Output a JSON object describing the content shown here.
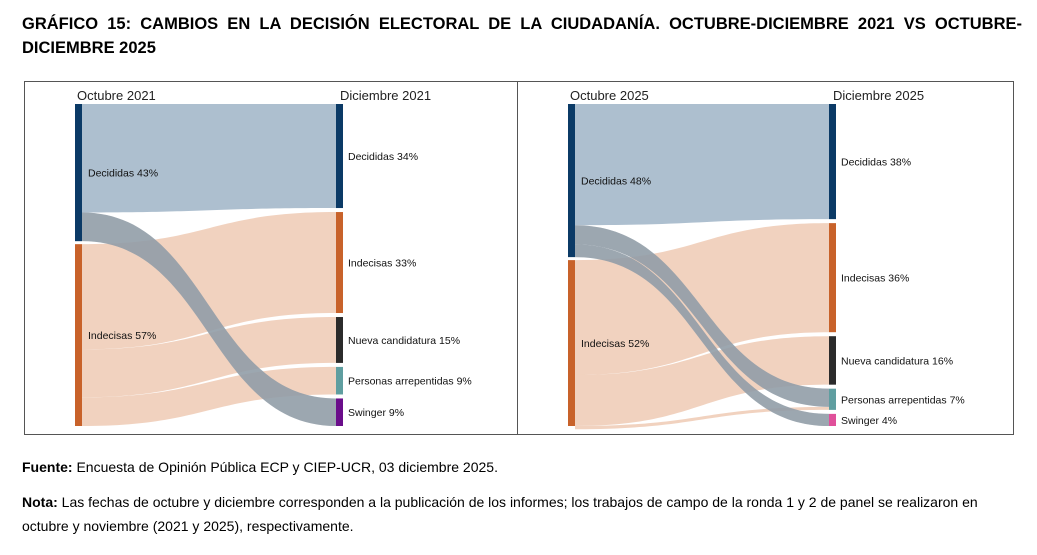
{
  "title": "GRÁFICO 15: CAMBIOS EN LA DECISIÓN ELECTORAL DE LA CIUDADANÍA. OCTUBRE-DICIEMBRE 2021 VS OCTUBRE-DICIEMBRE 2025",
  "footer": {
    "fuente_label": "Fuente:",
    "fuente_text": " Encuesta de Opinión Pública ECP y CIEP-UCR, 03 diciembre 2025.",
    "nota_label": "Nota:",
    "nota_text": " Las fechas de octubre y diciembre corresponden a la publicación de los informes; los trabajos de campo de la ronda 1 y 2 de panel se realizaron en octubre y noviembre (2021 y 2025), respectivamente."
  },
  "colors": {
    "decididas": "#0b3a66",
    "indecisas": "#c8622a",
    "nueva": "#2b2b2b",
    "arrepentidas": "#5f9ea0",
    "swinger_2021": "#6a0d8a",
    "swinger_2025": "#e0509a",
    "flow_decididas": "#a9bccc",
    "flow_indecisas": "#f0cdb8"
  },
  "chart_data": [
    {
      "type": "sankey",
      "left_title": "Octubre 2021",
      "right_title": "Diciembre 2021",
      "sources": [
        {
          "key": "decididas",
          "label": "Decididas 43%",
          "value": 43
        },
        {
          "key": "indecisas",
          "label": "Indecisas 57%",
          "value": 57
        }
      ],
      "targets": [
        {
          "key": "decididas",
          "label": "Decididas 34%",
          "value": 34
        },
        {
          "key": "indecisas",
          "label": "Indecisas 33%",
          "value": 33
        },
        {
          "key": "nueva",
          "label": "Nueva candidatura 15%",
          "value": 15
        },
        {
          "key": "arrepentidas",
          "label": "Personas arrepentidas 9%",
          "value": 9
        },
        {
          "key": "swinger_2021",
          "label": "Swinger 9%",
          "value": 9
        }
      ],
      "flows": [
        {
          "from": "decididas",
          "to": "decididas",
          "value": 34
        },
        {
          "from": "decididas",
          "to": "swinger_2021",
          "value": 9
        },
        {
          "from": "indecisas",
          "to": "indecisas",
          "value": 33
        },
        {
          "from": "indecisas",
          "to": "nueva",
          "value": 15
        },
        {
          "from": "indecisas",
          "to": "arrepentidas",
          "value": 9
        }
      ]
    },
    {
      "type": "sankey",
      "left_title": "Octubre 2025",
      "right_title": "Diciembre 2025",
      "sources": [
        {
          "key": "decididas",
          "label": "Decididas 48%",
          "value": 48
        },
        {
          "key": "indecisas",
          "label": "Indecisas 52%",
          "value": 52
        }
      ],
      "targets": [
        {
          "key": "decididas",
          "label": "Decididas 38%",
          "value": 38
        },
        {
          "key": "indecisas",
          "label": "Indecisas 36%",
          "value": 36
        },
        {
          "key": "nueva",
          "label": "Nueva candidatura 16%",
          "value": 16
        },
        {
          "key": "arrepentidas",
          "label": "Personas arrepentidas 7%",
          "value": 7
        },
        {
          "key": "swinger_2025",
          "label": "Swinger 4%",
          "value": 4
        }
      ],
      "flows": [
        {
          "from": "decididas",
          "to": "decididas",
          "value": 38
        },
        {
          "from": "decididas",
          "to": "arrepentidas",
          "value": 6
        },
        {
          "from": "decididas",
          "to": "swinger_2025",
          "value": 4
        },
        {
          "from": "indecisas",
          "to": "indecisas",
          "value": 36
        },
        {
          "from": "indecisas",
          "to": "nueva",
          "value": 16
        },
        {
          "from": "indecisas",
          "to": "arrepentidas",
          "value": 1
        }
      ]
    }
  ]
}
